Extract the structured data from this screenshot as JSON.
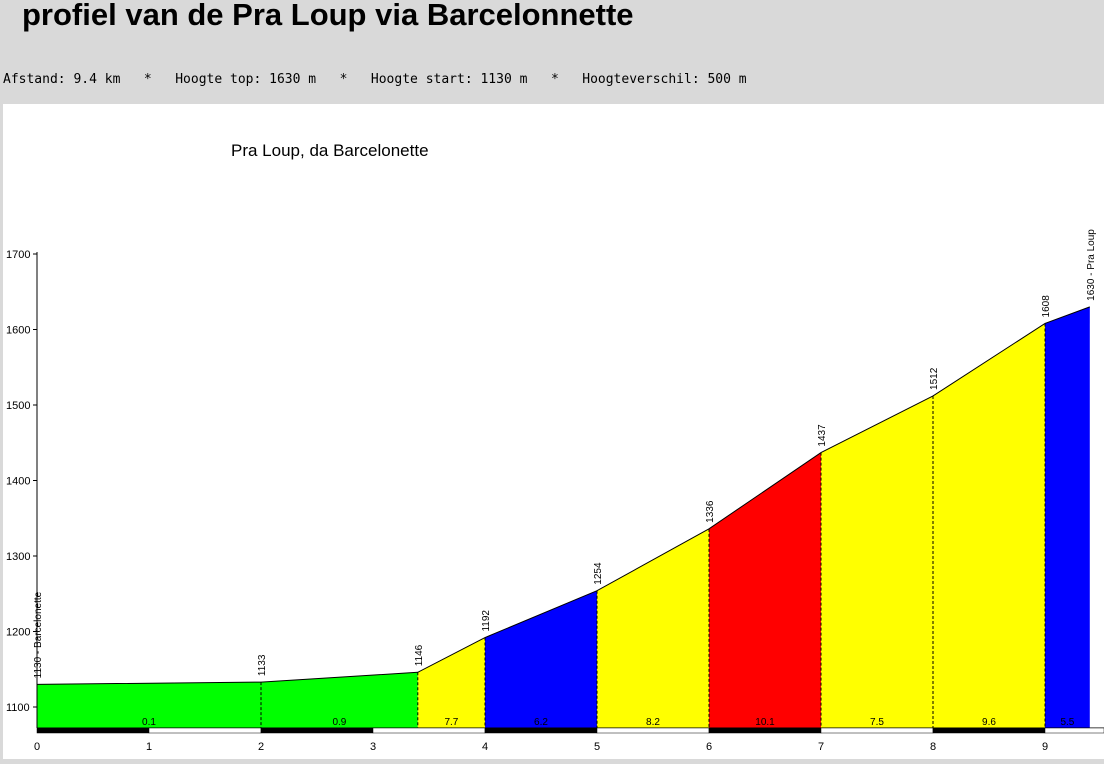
{
  "header": {
    "title": "profiel van de Pra Loup via Barcelonnette",
    "stats": [
      {
        "label": "Afstand:",
        "value": "9.4 km"
      },
      {
        "label": "Hoogte top:",
        "value": "1630 m"
      },
      {
        "label": "Hoogte start:",
        "value": "1130 m"
      },
      {
        "label": "Hoogteverschil:",
        "value": "500 m"
      }
    ],
    "separator": "*"
  },
  "chart_data": {
    "type": "area",
    "title": "Pra Loup, da Barcelonette",
    "xlim": [
      0,
      9.4
    ],
    "ylim": [
      1070,
      1700
    ],
    "yticks": [
      1100,
      1200,
      1300,
      1400,
      1500,
      1600,
      1700
    ],
    "xticks": [
      0,
      1,
      2,
      3,
      4,
      5,
      6,
      7,
      8,
      9
    ],
    "points": [
      {
        "x": 0,
        "y": 1130,
        "label": "1130 - Barcelonette"
      },
      {
        "x": 2,
        "y": 1133,
        "label": "1133"
      },
      {
        "x": 3.4,
        "y": 1146,
        "label": "1146"
      },
      {
        "x": 4,
        "y": 1192,
        "label": "1192"
      },
      {
        "x": 5,
        "y": 1254,
        "label": "1254"
      },
      {
        "x": 6,
        "y": 1336,
        "label": "1336"
      },
      {
        "x": 7,
        "y": 1437,
        "label": "1437"
      },
      {
        "x": 8,
        "y": 1512,
        "label": "1512"
      },
      {
        "x": 9,
        "y": 1608,
        "label": "1608"
      },
      {
        "x": 9.4,
        "y": 1630,
        "label": "1630 - Pra Loup"
      }
    ],
    "segments": [
      {
        "from": 0,
        "to": 2,
        "gradient": "0.1",
        "color": "#00ff00"
      },
      {
        "from": 2,
        "to": 3.4,
        "gradient": "0.9",
        "color": "#00ff00"
      },
      {
        "from": 3.4,
        "to": 4,
        "gradient": "7.7",
        "color": "#ffff00"
      },
      {
        "from": 4,
        "to": 5,
        "gradient": "6.2",
        "color": "#0000ff"
      },
      {
        "from": 5,
        "to": 6,
        "gradient": "8.2",
        "color": "#ffff00"
      },
      {
        "from": 6,
        "to": 7,
        "gradient": "10.1",
        "color": "#ff0000"
      },
      {
        "from": 7,
        "to": 8,
        "gradient": "7.5",
        "color": "#ffff00"
      },
      {
        "from": 8,
        "to": 9,
        "gradient": "9.6",
        "color": "#ffff00"
      },
      {
        "from": 9,
        "to": 9.4,
        "gradient": "5.5",
        "color": "#0000ff"
      }
    ]
  }
}
